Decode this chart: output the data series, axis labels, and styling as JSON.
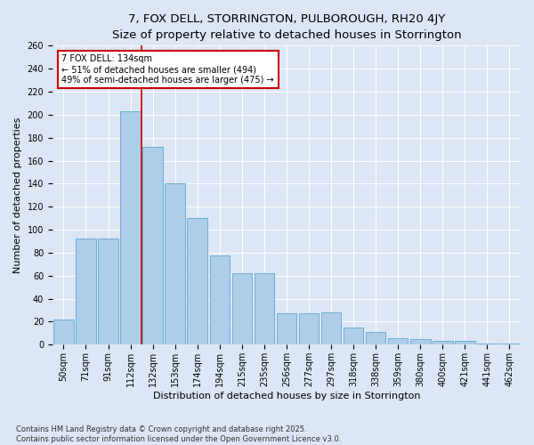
{
  "title1": "7, FOX DELL, STORRINGTON, PULBOROUGH, RH20 4JY",
  "title2": "Size of property relative to detached houses in Storrington",
  "xlabel": "Distribution of detached houses by size in Storrington",
  "ylabel": "Number of detached properties",
  "categories": [
    "50sqm",
    "71sqm",
    "91sqm",
    "112sqm",
    "132sqm",
    "153sqm",
    "174sqm",
    "194sqm",
    "215sqm",
    "235sqm",
    "256sqm",
    "277sqm",
    "297sqm",
    "318sqm",
    "338sqm",
    "359sqm",
    "380sqm",
    "400sqm",
    "421sqm",
    "441sqm",
    "462sqm"
  ],
  "values": [
    22,
    92,
    92,
    203,
    172,
    140,
    110,
    78,
    62,
    62,
    27,
    27,
    28,
    15,
    11,
    6,
    5,
    3,
    3,
    1,
    1
  ],
  "bar_color": "#aecde8",
  "bar_edge_color": "#6aaed6",
  "vline_color": "#cc0000",
  "vline_pos": 3.5,
  "annotation_text": "7 FOX DELL: 134sqm\n← 51% of detached houses are smaller (494)\n49% of semi-detached houses are larger (475) →",
  "annotation_box_color": "#ffffff",
  "annotation_box_edge": "#cc0000",
  "background_color": "#dce6f5",
  "footer": "Contains HM Land Registry data © Crown copyright and database right 2025.\nContains public sector information licensed under the Open Government Licence v3.0.",
  "ylim": [
    0,
    260
  ],
  "title1_fontsize": 9.5,
  "title2_fontsize": 8.5,
  "xlabel_fontsize": 8,
  "ylabel_fontsize": 8,
  "annot_fontsize": 7,
  "tick_fontsize": 7,
  "footer_fontsize": 6
}
